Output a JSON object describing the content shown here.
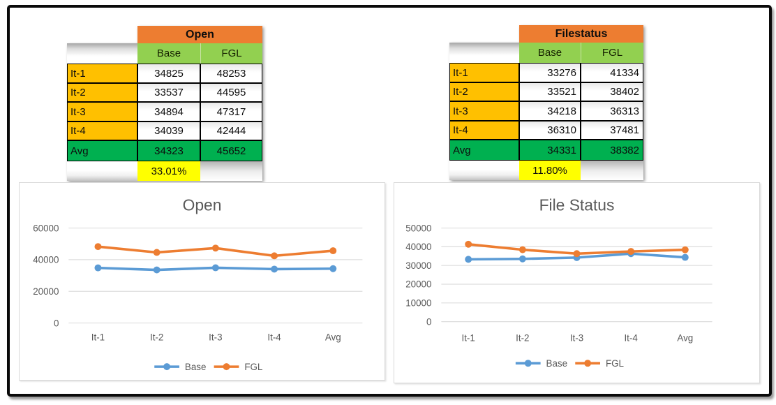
{
  "colors": {
    "table_title_bg": "#ED7D31",
    "column_header_bg": "#92D050",
    "row_label_bg": "#FFC000",
    "avg_row_bg": "#00B050",
    "percent_bg": "#FFFF00",
    "series_base": "#5B9BD5",
    "series_fgl": "#ED7D31",
    "chart_text": "#595959",
    "gridline": "#DDDDDD",
    "frame_border": "#0A0A0A"
  },
  "tables": [
    {
      "name": "open",
      "title": "Open",
      "columns": [
        "Base",
        "FGL"
      ],
      "rows": [
        {
          "label": "It-1",
          "values": [
            "34825",
            "48253"
          ]
        },
        {
          "label": "It-2",
          "values": [
            "33537",
            "44595"
          ]
        },
        {
          "label": "It-3",
          "values": [
            "34894",
            "47317"
          ]
        },
        {
          "label": "It-4",
          "values": [
            "34039",
            "42444"
          ]
        }
      ],
      "avg": {
        "label": "Avg",
        "values": [
          "34323",
          "45652"
        ]
      },
      "percent": "33.01%",
      "value_align": "center"
    },
    {
      "name": "filestatus",
      "title": "Filestatus",
      "columns": [
        "Base",
        "FGL"
      ],
      "rows": [
        {
          "label": "It-1",
          "values": [
            "33276",
            "41334"
          ]
        },
        {
          "label": "It-2",
          "values": [
            "33521",
            "38402"
          ]
        },
        {
          "label": "It-3",
          "values": [
            "34218",
            "36313"
          ]
        },
        {
          "label": "It-4",
          "values": [
            "36310",
            "37481"
          ]
        }
      ],
      "avg": {
        "label": "Avg",
        "values": [
          "34331",
          "38382"
        ]
      },
      "percent": "11.80%",
      "value_align": "right"
    }
  ],
  "chart_data": [
    {
      "type": "line",
      "title": "Open",
      "categories": [
        "It-1",
        "It-2",
        "It-3",
        "It-4",
        "Avg"
      ],
      "series": [
        {
          "name": "Base",
          "color": "#5B9BD5",
          "values": [
            34825,
            33537,
            34894,
            34039,
            34323
          ]
        },
        {
          "name": "FGL",
          "color": "#ED7D31",
          "values": [
            48253,
            44595,
            47317,
            42444,
            45652
          ]
        }
      ],
      "xlabel": "",
      "ylabel": "",
      "ylim": [
        0,
        60000
      ],
      "ytick_step": 20000,
      "grid": true,
      "marker": "circle",
      "legend_position": "bottom"
    },
    {
      "type": "line",
      "title": "File Status",
      "categories": [
        "It-1",
        "It-2",
        "It-3",
        "It-4",
        "Avg"
      ],
      "series": [
        {
          "name": "Base",
          "color": "#5B9BD5",
          "values": [
            33276,
            33521,
            34218,
            36310,
            34331
          ]
        },
        {
          "name": "FGL",
          "color": "#ED7D31",
          "values": [
            41334,
            38402,
            36313,
            37481,
            38382
          ]
        }
      ],
      "xlabel": "",
      "ylabel": "",
      "ylim": [
        0,
        50000
      ],
      "ytick_step": 10000,
      "grid": true,
      "marker": "circle",
      "legend_position": "bottom"
    }
  ]
}
